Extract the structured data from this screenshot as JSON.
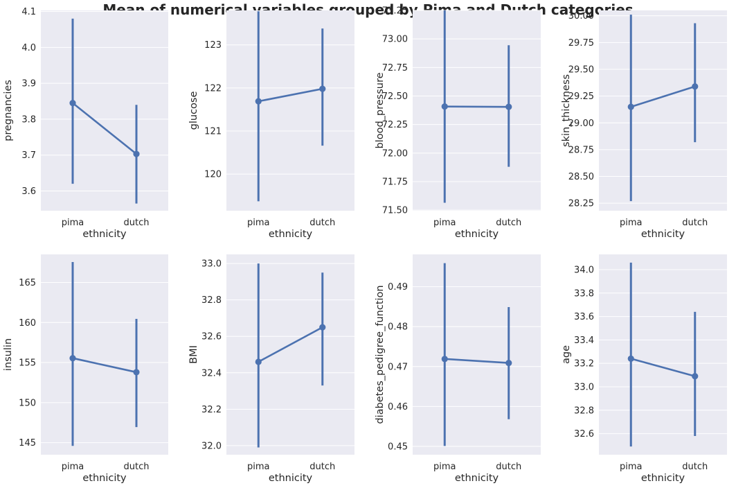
{
  "figure": {
    "title": "Mean of numerical variables grouped by Pima and Dutch categories"
  },
  "style": {
    "background": "#ffffff",
    "panel_background": "#eaeaf2",
    "grid_color": "#ffffff",
    "series_color": "#4c72b0",
    "text_color": "#262626"
  },
  "chart_data": [
    {
      "type": "line",
      "error_bars": true,
      "grid": true,
      "categories": [
        "pima",
        "dutch"
      ],
      "xlabel": "ethnicity",
      "ylabel": "pregnancies",
      "values": [
        3.845,
        3.703
      ],
      "ci_low": [
        3.62,
        3.565
      ],
      "ci_high": [
        4.08,
        3.84
      ],
      "ylim": [
        3.545,
        4.103
      ],
      "yticks": [
        3.6,
        3.7,
        3.8,
        3.9,
        4.0,
        4.1
      ],
      "ytick_labels": [
        "3.6",
        "3.7",
        "3.8",
        "3.9",
        "4.0",
        "4.1"
      ]
    },
    {
      "type": "line",
      "error_bars": true,
      "grid": true,
      "categories": [
        "pima",
        "dutch"
      ],
      "xlabel": "ethnicity",
      "ylabel": "glucose",
      "values": [
        121.69,
        121.98
      ],
      "ci_low": [
        119.37,
        120.66
      ],
      "ci_high": [
        123.78,
        123.38
      ],
      "ylim": [
        119.15,
        123.8
      ],
      "yticks": [
        120,
        121,
        122,
        123
      ],
      "ytick_labels": [
        "120",
        "121",
        "122",
        "123"
      ]
    },
    {
      "type": "line",
      "error_bars": true,
      "grid": true,
      "categories": [
        "pima",
        "dutch"
      ],
      "xlabel": "ethnicity",
      "ylabel": "blood_pressure",
      "values": [
        72.408,
        72.405
      ],
      "ci_low": [
        71.565,
        71.88
      ],
      "ci_high": [
        73.25,
        72.945
      ],
      "ylim": [
        71.495,
        73.25
      ],
      "yticks": [
        71.5,
        71.75,
        72.0,
        72.25,
        72.5,
        72.75,
        73.0,
        73.25
      ],
      "ytick_labels": [
        "71.50",
        "71.75",
        "72.00",
        "72.25",
        "72.50",
        "72.75",
        "73.00",
        "73.25"
      ]
    },
    {
      "type": "line",
      "error_bars": true,
      "grid": true,
      "categories": [
        "pima",
        "dutch"
      ],
      "xlabel": "ethnicity",
      "ylabel": "skin_thickness",
      "values": [
        29.15,
        29.34
      ],
      "ci_low": [
        28.27,
        28.82
      ],
      "ci_high": [
        30.01,
        29.93
      ],
      "ylim": [
        28.18,
        30.05
      ],
      "yticks": [
        28.25,
        28.5,
        28.75,
        29.0,
        29.25,
        29.5,
        29.75,
        30.0
      ],
      "ytick_labels": [
        "28.25",
        "28.50",
        "28.75",
        "29.00",
        "29.25",
        "29.50",
        "29.75",
        "30.00"
      ]
    },
    {
      "type": "line",
      "error_bars": true,
      "grid": true,
      "categories": [
        "pima",
        "dutch"
      ],
      "xlabel": "ethnicity",
      "ylabel": "insulin",
      "values": [
        155.55,
        153.8
      ],
      "ci_low": [
        144.6,
        146.95
      ],
      "ci_high": [
        167.55,
        160.45
      ],
      "ylim": [
        143.5,
        168.5
      ],
      "yticks": [
        145,
        150,
        155,
        160,
        165
      ],
      "ytick_labels": [
        "145",
        "150",
        "155",
        "160",
        "165"
      ]
    },
    {
      "type": "line",
      "error_bars": true,
      "grid": true,
      "categories": [
        "pima",
        "dutch"
      ],
      "xlabel": "ethnicity",
      "ylabel": "BMI",
      "values": [
        32.46,
        32.65
      ],
      "ci_low": [
        31.99,
        32.33
      ],
      "ci_high": [
        33.0,
        32.95
      ],
      "ylim": [
        31.95,
        33.05
      ],
      "yticks": [
        32.0,
        32.2,
        32.4,
        32.6,
        32.8,
        33.0
      ],
      "ytick_labels": [
        "32.0",
        "32.2",
        "32.4",
        "32.6",
        "32.8",
        "33.0"
      ]
    },
    {
      "type": "line",
      "error_bars": true,
      "grid": true,
      "categories": [
        "pima",
        "dutch"
      ],
      "xlabel": "ethnicity",
      "ylabel": "diabetes_pedigree_function",
      "values": [
        0.4719,
        0.4709
      ],
      "ci_low": [
        0.4501,
        0.4568
      ],
      "ci_high": [
        0.4959,
        0.4849
      ],
      "ylim": [
        0.4479,
        0.4981
      ],
      "yticks": [
        0.45,
        0.46,
        0.47,
        0.48,
        0.49
      ],
      "ytick_labels": [
        "0.45",
        "0.46",
        "0.47",
        "0.48",
        "0.49"
      ]
    },
    {
      "type": "line",
      "error_bars": true,
      "grid": true,
      "categories": [
        "pima",
        "dutch"
      ],
      "xlabel": "ethnicity",
      "ylabel": "age",
      "values": [
        33.24,
        33.09
      ],
      "ci_low": [
        32.49,
        32.58
      ],
      "ci_high": [
        34.06,
        33.64
      ],
      "ylim": [
        32.42,
        34.13
      ],
      "yticks": [
        32.6,
        32.8,
        33.0,
        33.2,
        33.4,
        33.6,
        33.8,
        34.0
      ],
      "ytick_labels": [
        "32.6",
        "32.8",
        "33.0",
        "33.2",
        "33.4",
        "33.6",
        "33.8",
        "34.0"
      ]
    }
  ]
}
